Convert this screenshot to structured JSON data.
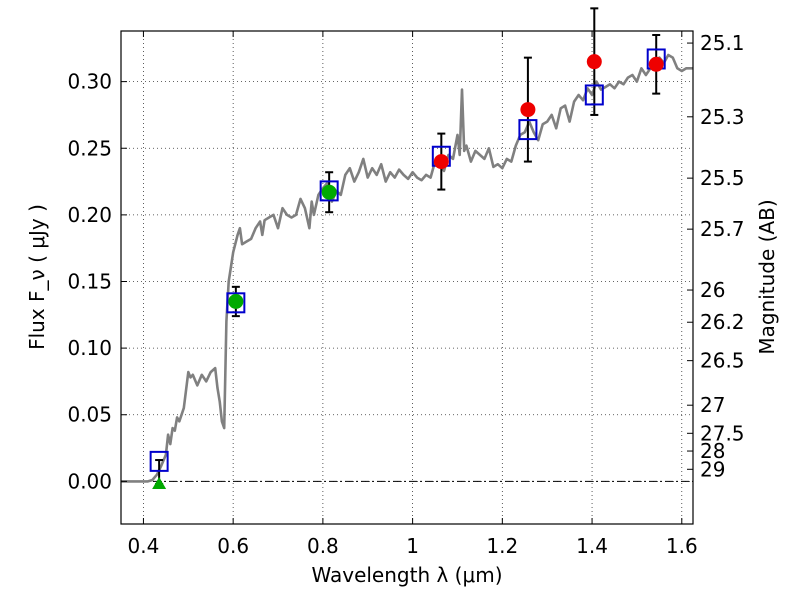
{
  "chart_data": {
    "type": "scatter",
    "title": "",
    "xlabel": "Wavelength  λ (μm)",
    "ylabel": "Flux  F_ν  ( μJy )",
    "ylabel_right": "Magnitude (AB)",
    "xlim": [
      0.35,
      1.625
    ],
    "ylim": [
      -0.032,
      0.338
    ],
    "grid": true,
    "x_ticks": [
      {
        "value": 0.4,
        "label": "0.4"
      },
      {
        "value": 0.6,
        "label": "0.6"
      },
      {
        "value": 0.8,
        "label": "0.8"
      },
      {
        "value": 1.0,
        "label": "1"
      },
      {
        "value": 1.2,
        "label": "1.2"
      },
      {
        "value": 1.4,
        "label": "1.4"
      },
      {
        "value": 1.6,
        "label": "1.6"
      }
    ],
    "y_ticks": [
      {
        "value": 0.0,
        "label": "0.00"
      },
      {
        "value": 0.05,
        "label": "0.05"
      },
      {
        "value": 0.1,
        "label": "0.10"
      },
      {
        "value": 0.15,
        "label": "0.15"
      },
      {
        "value": 0.2,
        "label": "0.20"
      },
      {
        "value": 0.25,
        "label": "0.25"
      },
      {
        "value": 0.3,
        "label": "0.30"
      }
    ],
    "mag_ticks": [
      {
        "value": 25.1,
        "label": "25.1"
      },
      {
        "value": 25.3,
        "label": "25.3"
      },
      {
        "value": 25.5,
        "label": "25.5"
      },
      {
        "value": 25.7,
        "label": "25.7"
      },
      {
        "value": 26.0,
        "label": "26"
      },
      {
        "value": 26.2,
        "label": "26.2"
      },
      {
        "value": 26.5,
        "label": "26.5"
      },
      {
        "value": 27.0,
        "label": "27"
      },
      {
        "value": 27.5,
        "label": "27.5"
      },
      {
        "value": 28.0,
        "label": "28"
      },
      {
        "value": 29.0,
        "label": "29"
      }
    ],
    "model_spectrum": {
      "color": "#808080",
      "points": [
        [
          0.35,
          0.0
        ],
        [
          0.41,
          0.0
        ],
        [
          0.42,
          0.001
        ],
        [
          0.43,
          0.005
        ],
        [
          0.44,
          0.012
        ],
        [
          0.45,
          0.02
        ],
        [
          0.455,
          0.035
        ],
        [
          0.46,
          0.028
        ],
        [
          0.465,
          0.04
        ],
        [
          0.47,
          0.038
        ],
        [
          0.475,
          0.048
        ],
        [
          0.48,
          0.045
        ],
        [
          0.49,
          0.055
        ],
        [
          0.5,
          0.082
        ],
        [
          0.505,
          0.078
        ],
        [
          0.51,
          0.08
        ],
        [
          0.52,
          0.072
        ],
        [
          0.53,
          0.08
        ],
        [
          0.54,
          0.075
        ],
        [
          0.55,
          0.082
        ],
        [
          0.56,
          0.085
        ],
        [
          0.565,
          0.07
        ],
        [
          0.57,
          0.06
        ],
        [
          0.575,
          0.045
        ],
        [
          0.58,
          0.04
        ],
        [
          0.585,
          0.12
        ],
        [
          0.59,
          0.15
        ],
        [
          0.6,
          0.172
        ],
        [
          0.61,
          0.185
        ],
        [
          0.615,
          0.19
        ],
        [
          0.62,
          0.178
        ],
        [
          0.63,
          0.18
        ],
        [
          0.64,
          0.182
        ],
        [
          0.65,
          0.19
        ],
        [
          0.66,
          0.195
        ],
        [
          0.665,
          0.185
        ],
        [
          0.67,
          0.196
        ],
        [
          0.68,
          0.198
        ],
        [
          0.69,
          0.2
        ],
        [
          0.7,
          0.19
        ],
        [
          0.71,
          0.205
        ],
        [
          0.72,
          0.2
        ],
        [
          0.73,
          0.198
        ],
        [
          0.74,
          0.2
        ],
        [
          0.75,
          0.212
        ],
        [
          0.76,
          0.205
        ],
        [
          0.77,
          0.19
        ],
        [
          0.775,
          0.21
        ],
        [
          0.78,
          0.2
        ],
        [
          0.79,
          0.215
        ],
        [
          0.8,
          0.22
        ],
        [
          0.81,
          0.224
        ],
        [
          0.82,
          0.21
        ],
        [
          0.83,
          0.218
        ],
        [
          0.84,
          0.215
        ],
        [
          0.85,
          0.23
        ],
        [
          0.86,
          0.235
        ],
        [
          0.87,
          0.225
        ],
        [
          0.88,
          0.232
        ],
        [
          0.89,
          0.242
        ],
        [
          0.9,
          0.228
        ],
        [
          0.91,
          0.235
        ],
        [
          0.92,
          0.23
        ],
        [
          0.93,
          0.238
        ],
        [
          0.94,
          0.225
        ],
        [
          0.95,
          0.232
        ],
        [
          0.96,
          0.228
        ],
        [
          0.97,
          0.234
        ],
        [
          0.98,
          0.23
        ],
        [
          0.99,
          0.227
        ],
        [
          1.0,
          0.232
        ],
        [
          1.01,
          0.228
        ],
        [
          1.02,
          0.226
        ],
        [
          1.03,
          0.23
        ],
        [
          1.04,
          0.228
        ],
        [
          1.05,
          0.24
        ],
        [
          1.06,
          0.238
        ],
        [
          1.07,
          0.233
        ],
        [
          1.08,
          0.245
        ],
        [
          1.09,
          0.242
        ],
        [
          1.1,
          0.26
        ],
        [
          1.105,
          0.245
        ],
        [
          1.11,
          0.294
        ],
        [
          1.115,
          0.248
        ],
        [
          1.12,
          0.252
        ],
        [
          1.13,
          0.24
        ],
        [
          1.14,
          0.248
        ],
        [
          1.15,
          0.245
        ],
        [
          1.16,
          0.242
        ],
        [
          1.17,
          0.25
        ],
        [
          1.18,
          0.236
        ],
        [
          1.19,
          0.238
        ],
        [
          1.2,
          0.235
        ],
        [
          1.21,
          0.242
        ],
        [
          1.22,
          0.24
        ],
        [
          1.23,
          0.252
        ],
        [
          1.24,
          0.26
        ],
        [
          1.25,
          0.262
        ],
        [
          1.26,
          0.27
        ],
        [
          1.27,
          0.262
        ],
        [
          1.28,
          0.256
        ],
        [
          1.29,
          0.268
        ],
        [
          1.3,
          0.27
        ],
        [
          1.31,
          0.275
        ],
        [
          1.32,
          0.265
        ],
        [
          1.33,
          0.28
        ],
        [
          1.34,
          0.282
        ],
        [
          1.35,
          0.27
        ],
        [
          1.36,
          0.285
        ],
        [
          1.37,
          0.29
        ],
        [
          1.38,
          0.286
        ],
        [
          1.39,
          0.295
        ],
        [
          1.4,
          0.29
        ],
        [
          1.41,
          0.3
        ],
        [
          1.42,
          0.294
        ],
        [
          1.43,
          0.296
        ],
        [
          1.44,
          0.298
        ],
        [
          1.45,
          0.295
        ],
        [
          1.46,
          0.3
        ],
        [
          1.47,
          0.298
        ],
        [
          1.48,
          0.303
        ],
        [
          1.49,
          0.305
        ],
        [
          1.5,
          0.3
        ],
        [
          1.51,
          0.31
        ],
        [
          1.52,
          0.305
        ],
        [
          1.53,
          0.31
        ],
        [
          1.54,
          0.315
        ],
        [
          1.55,
          0.318
        ],
        [
          1.56,
          0.314
        ],
        [
          1.57,
          0.32
        ],
        [
          1.58,
          0.318
        ],
        [
          1.59,
          0.31
        ],
        [
          1.6,
          0.308
        ],
        [
          1.61,
          0.31
        ],
        [
          1.625,
          0.31
        ]
      ]
    },
    "model_photometry": {
      "marker": "open-square",
      "color": "#0000cc",
      "points": [
        [
          0.435,
          0.015
        ],
        [
          0.606,
          0.134
        ],
        [
          0.814,
          0.218
        ],
        [
          1.064,
          0.244
        ],
        [
          1.257,
          0.264
        ],
        [
          1.405,
          0.29
        ],
        [
          1.543,
          0.317
        ]
      ]
    },
    "observed_optical": {
      "marker": "circle",
      "color": "#00aa00",
      "points": [
        {
          "x": 0.606,
          "y": 0.135,
          "err": 0.011
        },
        {
          "x": 0.814,
          "y": 0.217,
          "err": 0.015
        }
      ]
    },
    "observed_upper_limit": {
      "marker": "triangle",
      "color": "#00aa00",
      "x": 0.435,
      "y": -0.002,
      "err_top": 0.018
    },
    "observed_nir": {
      "marker": "circle",
      "color": "#ee0000",
      "points": [
        {
          "x": 1.064,
          "y": 0.24,
          "err": 0.021
        },
        {
          "x": 1.257,
          "y": 0.279,
          "err": 0.039
        },
        {
          "x": 1.405,
          "y": 0.315,
          "err": 0.04
        },
        {
          "x": 1.543,
          "y": 0.313,
          "err": 0.022
        }
      ]
    }
  }
}
